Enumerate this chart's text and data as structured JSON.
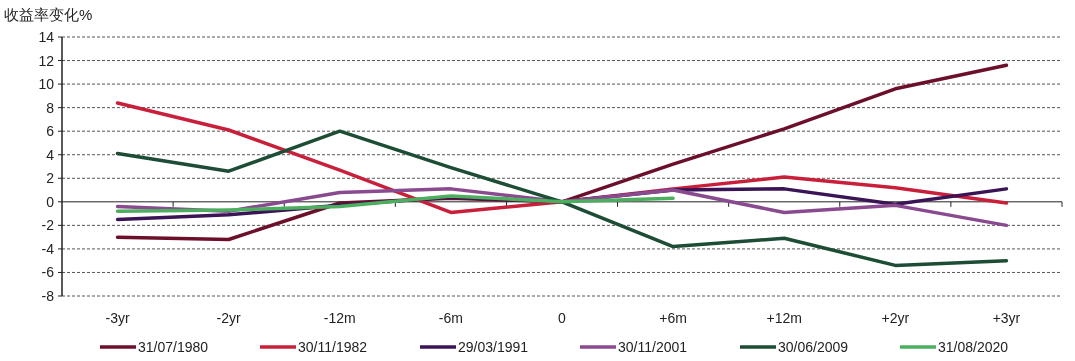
{
  "chart_data": {
    "type": "line",
    "ylabel": "收益率变化%",
    "categories": [
      "-3yr",
      "-2yr",
      "-12m",
      "-6m",
      "0",
      "+6m",
      "+12m",
      "+2yr",
      "+3yr"
    ],
    "series": [
      {
        "name": "31/07/1980",
        "color": "#6b0f2a",
        "values": [
          -3.0,
          -3.2,
          -0.1,
          0.3,
          0,
          3.2,
          6.2,
          9.6,
          11.6
        ]
      },
      {
        "name": "30/11/1982",
        "color": "#c8203a",
        "values": [
          8.4,
          6.1,
          2.7,
          -0.9,
          0,
          1.1,
          2.1,
          1.2,
          -0.1
        ]
      },
      {
        "name": "29/03/1991",
        "color": "#3a1454",
        "values": [
          -1.5,
          -1.1,
          -0.3,
          0.4,
          0,
          1.0,
          1.1,
          -0.2,
          1.1
        ]
      },
      {
        "name": "30/11/2001",
        "color": "#8a4a8f",
        "values": [
          -0.4,
          -0.8,
          0.8,
          1.1,
          0,
          1.0,
          -0.9,
          -0.3,
          -2.0
        ]
      },
      {
        "name": "30/06/2009",
        "color": "#1e4d35",
        "values": [
          4.1,
          2.6,
          6.0,
          2.9,
          0,
          -3.8,
          -3.1,
          -5.4,
          -5.0
        ]
      },
      {
        "name": "31/08/2020",
        "color": "#4caf60",
        "values": [
          -0.8,
          -0.7,
          -0.4,
          0.5,
          0,
          0.3,
          null,
          null,
          null
        ]
      }
    ],
    "ylim": [
      -8,
      14
    ],
    "yticks": [
      -8,
      -6,
      -4,
      -2,
      0,
      2,
      4,
      6,
      8,
      10,
      12,
      14
    ],
    "grid": "y",
    "legend": "bottom"
  }
}
